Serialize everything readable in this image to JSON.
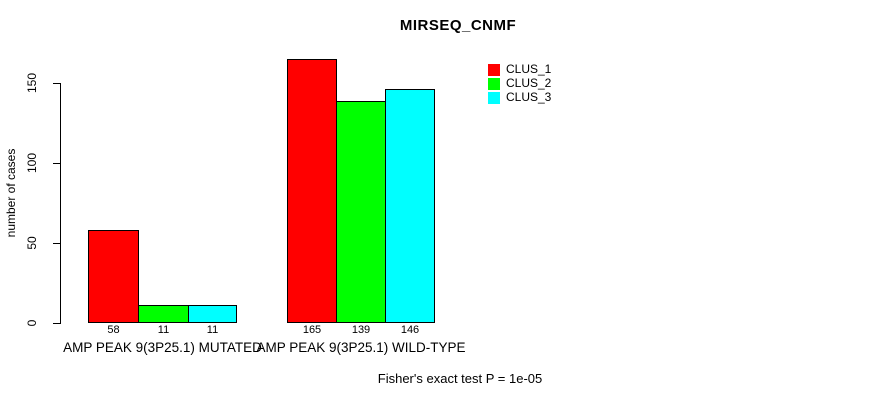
{
  "title": "MIRSEQ_CNMF",
  "ylabel": "number of cases",
  "annotation": "Fisher's exact test P = 1e-05",
  "legend": {
    "items": [
      {
        "label": "CLUS_1",
        "color": "#FF0000"
      },
      {
        "label": "CLUS_2",
        "color": "#00FF00"
      },
      {
        "label": "CLUS_3",
        "color": "#00FFFF"
      }
    ]
  },
  "chart_data": {
    "type": "bar",
    "title": "MIRSEQ_CNMF",
    "xlabel": "",
    "ylabel": "number of cases",
    "categories": [
      "AMP PEAK 9(3P25.1) MUTATED",
      "AMP PEAK 9(3P25.1) WILD-TYPE"
    ],
    "series": [
      {
        "name": "CLUS_1",
        "color": "#FF0000",
        "values": [
          58,
          165
        ]
      },
      {
        "name": "CLUS_2",
        "color": "#00FF00",
        "values": [
          11,
          139
        ]
      },
      {
        "name": "CLUS_3",
        "color": "#00FFFF",
        "values": [
          11,
          146
        ]
      }
    ],
    "bar_value_labels": [
      [
        "58",
        "11",
        "11"
      ],
      [
        "165",
        "139",
        "146"
      ]
    ],
    "yticks": [
      0,
      50,
      100,
      150
    ],
    "ylim": [
      0,
      165
    ],
    "grid": false,
    "legend_position": "top-right",
    "annotation": "Fisher's exact test P = 1e-05"
  }
}
